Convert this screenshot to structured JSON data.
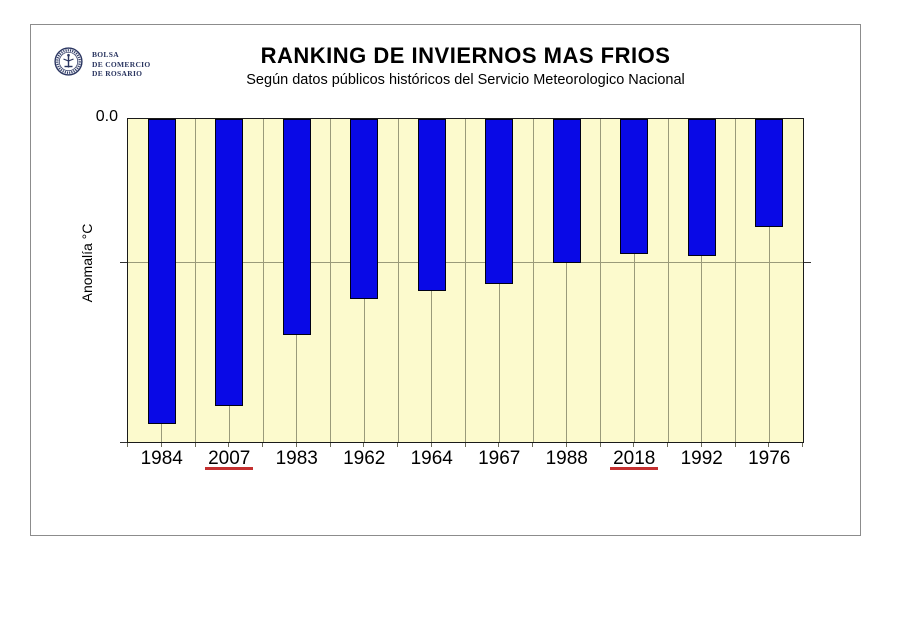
{
  "header": {
    "logo": {
      "line1": "BOLSA",
      "line2": "DE COMERCIO",
      "line3": "DE ROSARIO"
    },
    "title": "RANKING DE INVIERNOS MAS FRIOS",
    "subtitle": "Según datos públicos históricos del Servicio Meteorologico Nacional"
  },
  "axes": {
    "zero_label": "0.0",
    "ylabel": "Anomalía °C"
  },
  "chart_data": {
    "type": "bar",
    "title": "RANKING DE INVIERNOS MAS FRIOS",
    "subtitle": "Según datos públicos históricos del Servicio Meteorologico Nacional",
    "xlabel": "",
    "ylabel": "Anomalía °C",
    "ylim": [
      -2.25,
      0
    ],
    "y_tick_labels_visible": [
      "0.0"
    ],
    "horizontal_gridline_at": -1.0,
    "grid": "one horizontal gridline at -1.0; fine vertical gridlines at every half bar-slot",
    "legend": "none",
    "bars_hang_from_zero_at_top": true,
    "categories": [
      "1984",
      "2007",
      "1983",
      "1962",
      "1964",
      "1967",
      "1988",
      "2018",
      "1992",
      "1976"
    ],
    "values": [
      -2.12,
      -2.0,
      -1.5,
      -1.25,
      -1.2,
      -1.15,
      -1.0,
      -0.94,
      -0.95,
      -0.75
    ],
    "underlined_categories": [
      "2007",
      "2018"
    ],
    "colors": {
      "bar": "#0909e6",
      "bar_border": "#000014",
      "plot_background": "#fcfacd",
      "gridline": "#9a9a7a",
      "underline_red": "#c43030",
      "frame_border": "#8c8c8c",
      "logo_navy": "#2a3560"
    }
  }
}
